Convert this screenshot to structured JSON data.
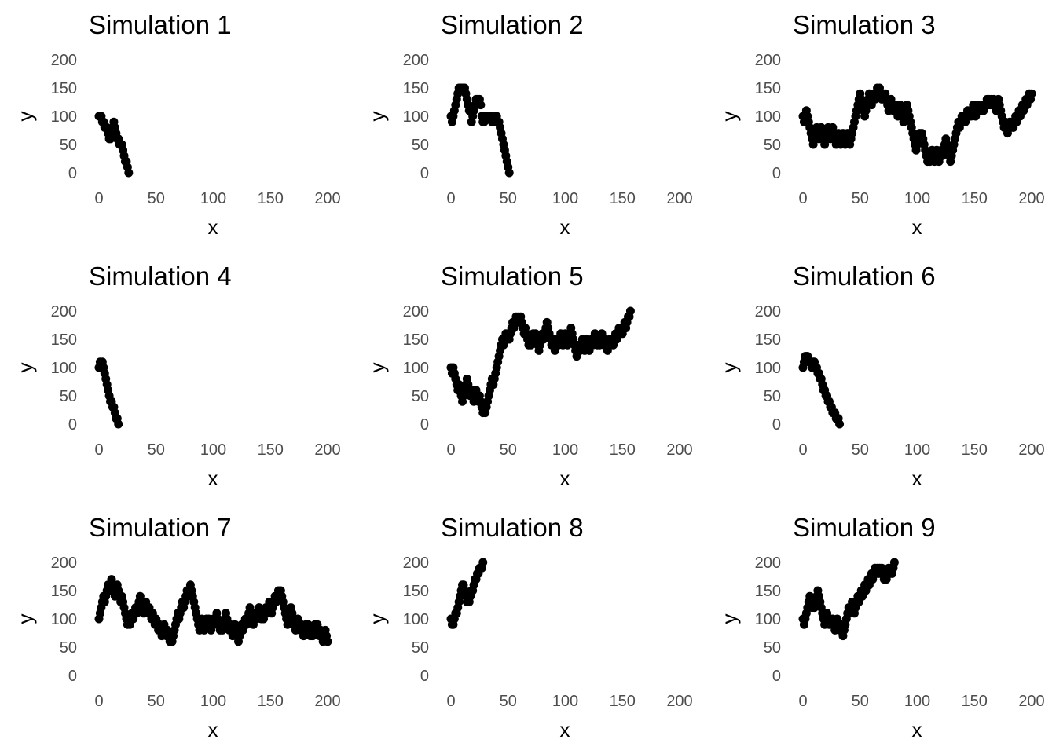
{
  "point_color": "#000000",
  "chart_data": [
    {
      "type": "scatter",
      "title": "Simulation 1",
      "xlabel": "x",
      "ylabel": "y",
      "xlim": [
        0,
        200
      ],
      "ylim": [
        0,
        200
      ],
      "x_ticks": [
        0,
        50,
        100,
        150,
        200
      ],
      "y_ticks": [
        0,
        50,
        100,
        150,
        200
      ],
      "grid": false,
      "y": [
        100,
        100,
        100,
        90,
        90,
        80,
        80,
        80,
        70,
        60,
        60,
        70,
        80,
        90,
        80,
        70,
        60,
        60,
        50,
        50,
        50,
        40,
        30,
        20,
        20,
        10,
        0
      ]
    },
    {
      "type": "scatter",
      "title": "Simulation 2",
      "xlabel": "x",
      "ylabel": "y",
      "xlim": [
        0,
        200
      ],
      "ylim": [
        0,
        200
      ],
      "x_ticks": [
        0,
        50,
        100,
        150,
        200
      ],
      "y_ticks": [
        0,
        50,
        100,
        150,
        200
      ],
      "grid": false,
      "y": [
        100,
        90,
        100,
        110,
        120,
        130,
        140,
        150,
        150,
        150,
        150,
        150,
        150,
        140,
        130,
        120,
        110,
        110,
        90,
        100,
        110,
        120,
        130,
        130,
        130,
        130,
        120,
        100,
        90,
        90,
        100,
        100,
        100,
        100,
        100,
        100,
        90,
        90,
        90,
        100,
        100,
        90,
        90,
        80,
        70,
        60,
        50,
        40,
        30,
        20,
        10,
        0
      ]
    },
    {
      "type": "scatter",
      "title": "Simulation 3",
      "xlabel": "x",
      "ylabel": "y",
      "xlim": [
        0,
        200
      ],
      "ylim": [
        0,
        200
      ],
      "x_ticks": [
        0,
        50,
        100,
        150,
        200
      ],
      "y_ticks": [
        0,
        50,
        100,
        150,
        200
      ],
      "grid": false,
      "y": [
        100,
        90,
        100,
        110,
        100,
        90,
        80,
        70,
        60,
        50,
        60,
        70,
        80,
        70,
        60,
        70,
        80,
        70,
        60,
        50,
        60,
        70,
        80,
        70,
        60,
        70,
        80,
        70,
        60,
        50,
        60,
        70,
        60,
        50,
        60,
        70,
        60,
        50,
        60,
        70,
        60,
        50,
        60,
        70,
        80,
        90,
        100,
        110,
        120,
        130,
        140,
        130,
        120,
        110,
        100,
        110,
        120,
        130,
        140,
        130,
        120,
        130,
        140,
        130,
        140,
        150,
        140,
        150,
        140,
        130,
        140,
        130,
        140,
        130,
        120,
        110,
        120,
        130,
        120,
        110,
        110,
        120,
        110,
        100,
        110,
        120,
        110,
        100,
        90,
        100,
        110,
        120,
        110,
        100,
        90,
        80,
        70,
        60,
        50,
        40,
        50,
        60,
        70,
        60,
        70,
        60,
        50,
        40,
        30,
        20,
        30,
        20,
        30,
        40,
        30,
        20,
        30,
        40,
        30,
        20,
        30,
        40,
        30,
        40,
        50,
        60,
        50,
        40,
        30,
        20,
        30,
        40,
        50,
        60,
        70,
        80,
        90,
        80,
        90,
        100,
        90,
        100,
        90,
        100,
        110,
        100,
        110,
        100,
        110,
        120,
        110,
        100,
        110,
        120,
        110,
        120,
        110,
        120,
        110,
        120,
        120,
        130,
        120,
        130,
        120,
        130,
        120,
        130,
        120,
        110,
        120,
        130,
        120,
        110,
        100,
        90,
        80,
        90,
        80,
        70,
        80,
        90,
        80,
        90,
        80,
        90,
        100,
        90,
        100,
        110,
        100,
        110,
        120,
        110,
        120,
        130,
        120,
        130,
        140,
        130,
        140
      ]
    },
    {
      "type": "scatter",
      "title": "Simulation 4",
      "xlabel": "x",
      "ylabel": "y",
      "xlim": [
        0,
        200
      ],
      "ylim": [
        0,
        200
      ],
      "x_ticks": [
        0,
        50,
        100,
        150,
        200
      ],
      "y_ticks": [
        0,
        50,
        100,
        150,
        200
      ],
      "grid": false,
      "y": [
        100,
        110,
        100,
        110,
        100,
        90,
        80,
        70,
        60,
        50,
        40,
        40,
        30,
        30,
        20,
        10,
        10,
        0
      ]
    },
    {
      "type": "scatter",
      "title": "Simulation 5",
      "xlabel": "x",
      "ylabel": "y",
      "xlim": [
        0,
        200
      ],
      "ylim": [
        0,
        200
      ],
      "x_ticks": [
        0,
        50,
        100,
        150,
        200
      ],
      "y_ticks": [
        0,
        50,
        100,
        150,
        200
      ],
      "grid": false,
      "y": [
        100,
        90,
        100,
        90,
        80,
        70,
        60,
        70,
        60,
        50,
        40,
        50,
        60,
        70,
        80,
        70,
        60,
        50,
        60,
        50,
        40,
        50,
        60,
        50,
        40,
        50,
        40,
        30,
        20,
        30,
        20,
        30,
        40,
        50,
        60,
        70,
        80,
        70,
        80,
        90,
        100,
        110,
        120,
        130,
        140,
        150,
        140,
        150,
        160,
        150,
        160,
        150,
        160,
        170,
        180,
        170,
        180,
        190,
        180,
        190,
        180,
        190,
        180,
        170,
        160,
        170,
        160,
        150,
        140,
        150,
        140,
        150,
        160,
        150,
        160,
        150,
        140,
        130,
        140,
        150,
        160,
        150,
        160,
        170,
        180,
        170,
        160,
        150,
        140,
        150,
        140,
        130,
        140,
        150,
        140,
        150,
        160,
        150,
        140,
        150,
        160,
        150,
        140,
        150,
        160,
        170,
        160,
        150,
        140,
        130,
        120,
        130,
        140,
        130,
        140,
        150,
        140,
        130,
        140,
        150,
        140,
        130,
        140,
        150,
        140,
        150,
        160,
        150,
        140,
        150,
        140,
        150,
        160,
        150,
        140,
        150,
        140,
        130,
        140,
        150,
        140,
        150,
        140,
        150,
        160,
        150,
        160,
        170,
        160,
        170,
        160,
        170,
        180,
        170,
        180,
        190,
        190,
        200
      ]
    },
    {
      "type": "scatter",
      "title": "Simulation 6",
      "xlabel": "x",
      "ylabel": "y",
      "xlim": [
        0,
        200
      ],
      "ylim": [
        0,
        200
      ],
      "x_ticks": [
        0,
        50,
        100,
        150,
        200
      ],
      "y_ticks": [
        0,
        50,
        100,
        150,
        200
      ],
      "grid": false,
      "y": [
        100,
        110,
        120,
        120,
        120,
        110,
        110,
        110,
        100,
        110,
        110,
        100,
        100,
        90,
        90,
        80,
        80,
        70,
        60,
        60,
        50,
        50,
        40,
        40,
        30,
        30,
        20,
        20,
        20,
        10,
        10,
        10,
        0
      ]
    },
    {
      "type": "scatter",
      "title": "Simulation 7",
      "xlabel": "x",
      "ylabel": "y",
      "xlim": [
        0,
        200
      ],
      "ylim": [
        0,
        200
      ],
      "x_ticks": [
        0,
        50,
        100,
        150,
        200
      ],
      "y_ticks": [
        0,
        50,
        100,
        150,
        200
      ],
      "grid": false,
      "y": [
        100,
        110,
        120,
        130,
        140,
        130,
        140,
        150,
        160,
        150,
        160,
        170,
        160,
        150,
        140,
        150,
        160,
        150,
        140,
        130,
        140,
        130,
        120,
        110,
        100,
        90,
        100,
        90,
        100,
        110,
        100,
        110,
        120,
        110,
        120,
        130,
        140,
        130,
        120,
        110,
        120,
        130,
        120,
        110,
        120,
        110,
        100,
        110,
        100,
        90,
        100,
        90,
        80,
        90,
        80,
        70,
        80,
        90,
        80,
        70,
        80,
        70,
        60,
        70,
        60,
        70,
        80,
        90,
        100,
        110,
        100,
        110,
        120,
        130,
        120,
        130,
        140,
        150,
        140,
        150,
        160,
        150,
        140,
        130,
        120,
        110,
        100,
        90,
        80,
        90,
        100,
        90,
        80,
        90,
        100,
        90,
        100,
        90,
        80,
        90,
        100,
        90,
        100,
        110,
        100,
        90,
        80,
        90,
        80,
        90,
        100,
        110,
        100,
        90,
        80,
        90,
        80,
        70,
        80,
        90,
        80,
        70,
        60,
        70,
        80,
        90,
        80,
        90,
        100,
        90,
        100,
        110,
        120,
        110,
        100,
        90,
        100,
        110,
        100,
        110,
        120,
        110,
        100,
        110,
        100,
        110,
        120,
        110,
        120,
        130,
        120,
        110,
        120,
        130,
        140,
        130,
        140,
        150,
        140,
        150,
        140,
        130,
        120,
        110,
        100,
        90,
        100,
        110,
        120,
        110,
        100,
        90,
        80,
        90,
        100,
        90,
        80,
        90,
        80,
        70,
        80,
        90,
        80,
        90,
        80,
        70,
        80,
        70,
        80,
        90,
        80,
        90,
        80,
        70,
        80,
        70,
        60,
        70,
        80,
        70,
        60
      ]
    },
    {
      "type": "scatter",
      "title": "Simulation 8",
      "xlabel": "x",
      "ylabel": "y",
      "xlim": [
        0,
        200
      ],
      "ylim": [
        0,
        200
      ],
      "x_ticks": [
        0,
        50,
        100,
        150,
        200
      ],
      "y_ticks": [
        0,
        50,
        100,
        150,
        200
      ],
      "grid": false,
      "y": [
        100,
        90,
        90,
        100,
        110,
        110,
        120,
        130,
        140,
        150,
        160,
        160,
        150,
        140,
        130,
        140,
        130,
        140,
        150,
        150,
        160,
        170,
        170,
        180,
        180,
        190,
        190,
        190,
        200
      ]
    },
    {
      "type": "scatter",
      "title": "Simulation 9",
      "xlabel": "x",
      "ylabel": "y",
      "xlim": [
        0,
        200
      ],
      "ylim": [
        0,
        200
      ],
      "x_ticks": [
        0,
        50,
        100,
        150,
        200
      ],
      "y_ticks": [
        0,
        50,
        100,
        150,
        200
      ],
      "grid": false,
      "y": [
        100,
        90,
        100,
        110,
        120,
        130,
        140,
        130,
        120,
        130,
        120,
        130,
        140,
        150,
        140,
        130,
        120,
        110,
        100,
        90,
        100,
        110,
        100,
        90,
        100,
        90,
        100,
        90,
        80,
        90,
        100,
        90,
        80,
        90,
        80,
        70,
        80,
        90,
        100,
        110,
        120,
        110,
        120,
        130,
        120,
        110,
        120,
        130,
        140,
        130,
        140,
        150,
        140,
        150,
        160,
        150,
        160,
        170,
        160,
        170,
        180,
        170,
        180,
        190,
        180,
        190,
        180,
        190,
        180,
        190,
        180,
        170,
        180,
        170,
        180,
        190,
        180,
        190,
        180,
        190,
        200
      ]
    }
  ]
}
